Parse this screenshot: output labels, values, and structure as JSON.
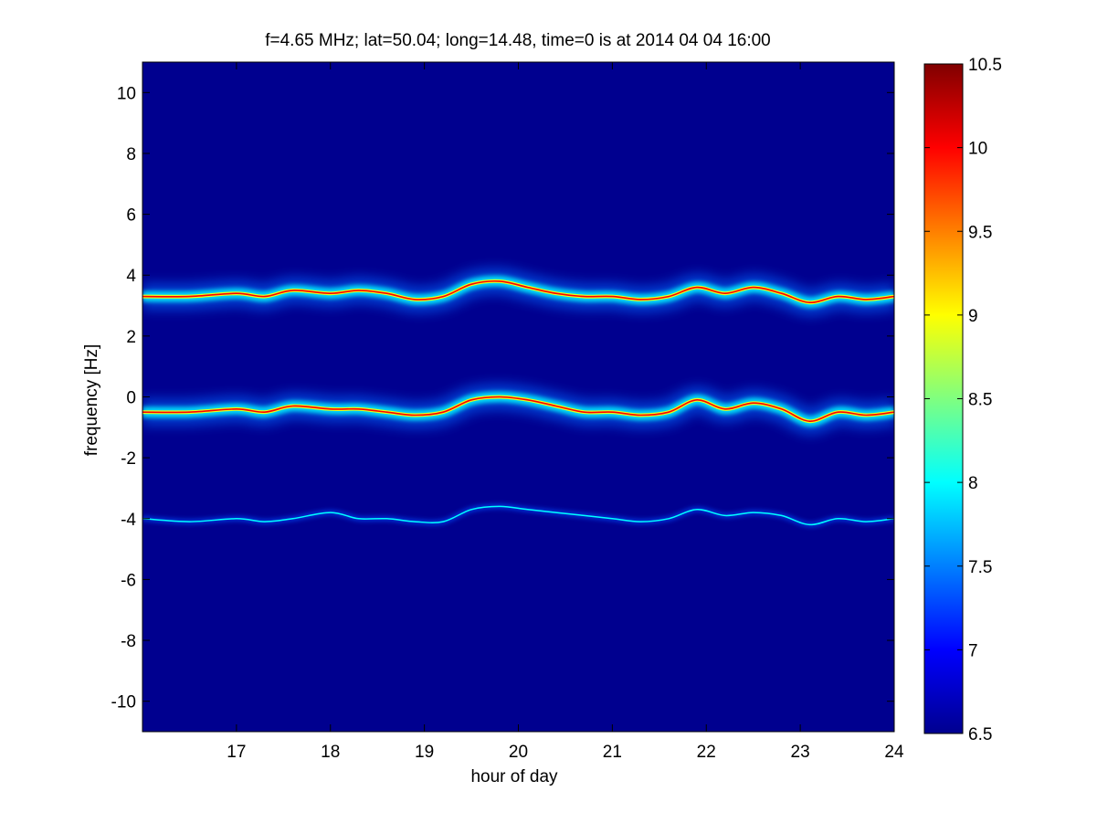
{
  "chart_data": {
    "type": "heatmap",
    "title": "f=4.65 MHz;  lat=50.04; long=14.48, time=0 is at 2014 04 04 16:00",
    "xlabel": "hour of day",
    "ylabel": "frequency [Hz]",
    "xlim": [
      16,
      24
    ],
    "ylim": [
      -11,
      11
    ],
    "x_ticks": [
      17,
      18,
      19,
      20,
      21,
      22,
      23,
      24
    ],
    "y_ticks": [
      -10,
      -8,
      -6,
      -4,
      -2,
      0,
      2,
      4,
      6,
      8,
      10
    ],
    "colorbar": {
      "range": [
        6.5,
        10.5
      ],
      "ticks": [
        "6.5",
        "7",
        "7.5",
        "8",
        "8.5",
        "9",
        "9.5",
        "10",
        "10.5"
      ],
      "colormap": "jet"
    },
    "background_color": "#00008f",
    "grid": false,
    "series": [
      {
        "name": "",
        "peak_value": 10,
        "x": [
          16.0,
          16.5,
          17.0,
          17.3,
          17.6,
          18.0,
          18.3,
          18.6,
          18.9,
          19.2,
          19.5,
          19.8,
          20.1,
          20.4,
          20.7,
          21.0,
          21.3,
          21.6,
          21.9,
          22.2,
          22.5,
          22.8,
          23.1,
          23.4,
          23.7,
          24.0
        ],
        "values": [
          3.3,
          3.3,
          3.4,
          3.3,
          3.5,
          3.4,
          3.5,
          3.4,
          3.2,
          3.3,
          3.7,
          3.8,
          3.6,
          3.4,
          3.3,
          3.3,
          3.2,
          3.3,
          3.6,
          3.4,
          3.6,
          3.4,
          3.1,
          3.3,
          3.2,
          3.3
        ]
      },
      {
        "name": "",
        "peak_value": 10,
        "x": [
          16.0,
          16.5,
          17.0,
          17.3,
          17.6,
          18.0,
          18.3,
          18.6,
          18.9,
          19.2,
          19.5,
          19.8,
          20.1,
          20.4,
          20.7,
          21.0,
          21.3,
          21.6,
          21.9,
          22.2,
          22.5,
          22.8,
          23.1,
          23.4,
          23.7,
          24.0
        ],
        "values": [
          -0.5,
          -0.5,
          -0.4,
          -0.5,
          -0.3,
          -0.4,
          -0.4,
          -0.5,
          -0.6,
          -0.5,
          -0.1,
          0.0,
          -0.1,
          -0.3,
          -0.5,
          -0.5,
          -0.6,
          -0.5,
          -0.1,
          -0.4,
          -0.2,
          -0.4,
          -0.8,
          -0.5,
          -0.6,
          -0.5
        ]
      },
      {
        "name": "",
        "peak_value": 8,
        "x": [
          16.0,
          16.5,
          17.0,
          17.3,
          17.6,
          18.0,
          18.3,
          18.6,
          18.9,
          19.2,
          19.5,
          19.8,
          20.1,
          20.4,
          20.7,
          21.0,
          21.3,
          21.6,
          21.9,
          22.2,
          22.5,
          22.8,
          23.1,
          23.4,
          23.7,
          24.0
        ],
        "values": [
          -4.0,
          -4.1,
          -4.0,
          -4.1,
          -4.0,
          -3.8,
          -4.0,
          -4.0,
          -4.1,
          -4.1,
          -3.7,
          -3.6,
          -3.7,
          -3.8,
          -3.9,
          -4.0,
          -4.1,
          -4.0,
          -3.7,
          -3.9,
          -3.8,
          -3.9,
          -4.2,
          -4.0,
          -4.1,
          -4.0
        ]
      }
    ]
  }
}
